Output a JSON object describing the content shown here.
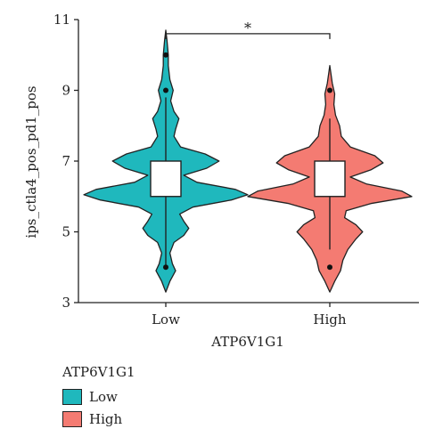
{
  "chart_data": {
    "type": "violin",
    "xlabel": "ATP6V1G1",
    "ylabel": "ips_ctla4_pos_pd1_pos",
    "ylim": [
      3,
      11
    ],
    "yticks": [
      3,
      5,
      7,
      9,
      11
    ],
    "categories": [
      "Low",
      "High"
    ],
    "colors": {
      "Low": "#1fb8bd",
      "High": "#f47b72"
    },
    "significance": "*",
    "groups": [
      {
        "name": "Low",
        "q1": 6.0,
        "median": 6.4,
        "q3": 7.0,
        "whisker_low": 4.0,
        "whisker_high": 8.8,
        "min": 3.3,
        "max": 10.7,
        "outliers": [
          10.0,
          9.0,
          4.0
        ],
        "density": [
          [
            3.3,
            0.0
          ],
          [
            3.6,
            0.05
          ],
          [
            3.9,
            0.12
          ],
          [
            4.1,
            0.08
          ],
          [
            4.4,
            0.05
          ],
          [
            4.7,
            0.1
          ],
          [
            4.9,
            0.22
          ],
          [
            5.1,
            0.28
          ],
          [
            5.3,
            0.22
          ],
          [
            5.5,
            0.17
          ],
          [
            5.7,
            0.33
          ],
          [
            5.9,
            0.8
          ],
          [
            6.05,
            1.0
          ],
          [
            6.2,
            0.85
          ],
          [
            6.4,
            0.38
          ],
          [
            6.6,
            0.22
          ],
          [
            6.8,
            0.5
          ],
          [
            7.0,
            0.65
          ],
          [
            7.2,
            0.48
          ],
          [
            7.4,
            0.18
          ],
          [
            7.7,
            0.1
          ],
          [
            7.9,
            0.12
          ],
          [
            8.2,
            0.16
          ],
          [
            8.4,
            0.1
          ],
          [
            8.7,
            0.06
          ],
          [
            9.0,
            0.09
          ],
          [
            9.3,
            0.05
          ],
          [
            9.7,
            0.03
          ],
          [
            10.0,
            0.03
          ],
          [
            10.4,
            0.015
          ],
          [
            10.7,
            0.0
          ]
        ]
      },
      {
        "name": "High",
        "q1": 6.0,
        "median": 6.4,
        "q3": 7.0,
        "whisker_low": 4.5,
        "whisker_high": 8.2,
        "min": 3.3,
        "max": 9.7,
        "outliers": [
          9.0,
          4.0
        ],
        "density": [
          [
            3.3,
            0.0
          ],
          [
            3.6,
            0.06
          ],
          [
            3.9,
            0.13
          ],
          [
            4.2,
            0.16
          ],
          [
            4.5,
            0.22
          ],
          [
            4.8,
            0.32
          ],
          [
            5.0,
            0.4
          ],
          [
            5.2,
            0.32
          ],
          [
            5.4,
            0.18
          ],
          [
            5.6,
            0.2
          ],
          [
            5.8,
            0.5
          ],
          [
            6.0,
            1.0
          ],
          [
            6.15,
            0.88
          ],
          [
            6.35,
            0.45
          ],
          [
            6.55,
            0.25
          ],
          [
            6.75,
            0.5
          ],
          [
            6.95,
            0.65
          ],
          [
            7.15,
            0.55
          ],
          [
            7.4,
            0.25
          ],
          [
            7.7,
            0.14
          ],
          [
            8.0,
            0.12
          ],
          [
            8.3,
            0.07
          ],
          [
            8.6,
            0.05
          ],
          [
            8.9,
            0.06
          ],
          [
            9.2,
            0.03
          ],
          [
            9.7,
            0.0
          ]
        ]
      }
    ],
    "legend": {
      "title": "ATP6V1G1",
      "items": [
        {
          "label": "Low",
          "color": "#1fb8bd"
        },
        {
          "label": "High",
          "color": "#f47b72"
        }
      ]
    }
  }
}
